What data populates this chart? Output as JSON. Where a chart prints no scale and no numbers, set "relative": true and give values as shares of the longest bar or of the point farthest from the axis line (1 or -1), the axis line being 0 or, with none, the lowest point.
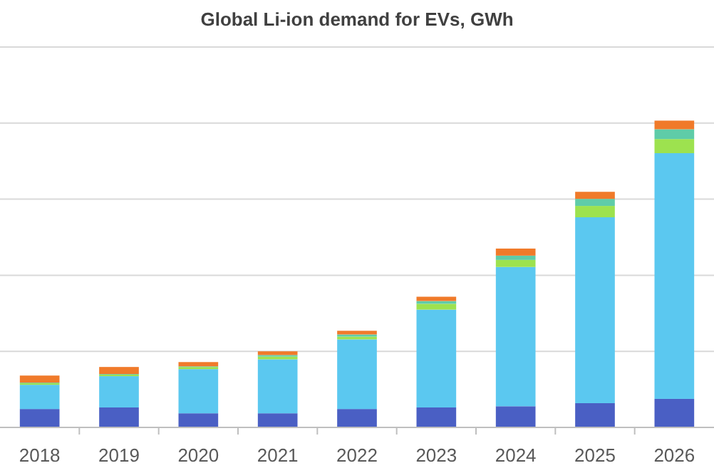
{
  "chart_data": {
    "type": "bar",
    "title": "Global Li-ion demand for EVs, GWh",
    "categories": [
      "2018",
      "2019",
      "2020",
      "2021",
      "2022",
      "2023",
      "2024",
      "2025",
      "2026"
    ],
    "stacked": true,
    "relative": true,
    "grid": "y",
    "series": [
      {
        "color": "#4a5fc4",
        "values": [
          0.06,
          0.065,
          0.046,
          0.046,
          0.06,
          0.065,
          0.069,
          0.079,
          0.093
        ]
      },
      {
        "color": "#5bc8f0",
        "values": [
          0.079,
          0.102,
          0.144,
          0.176,
          0.227,
          0.319,
          0.454,
          0.606,
          0.801
        ]
      },
      {
        "color": "#9de24f",
        "values": [
          0.005,
          0.005,
          0.007,
          0.009,
          0.009,
          0.019,
          0.023,
          0.037,
          0.046
        ]
      },
      {
        "color": "#5fcca8",
        "values": [
          0.002,
          0.002,
          0.002,
          0.005,
          0.007,
          0.009,
          0.014,
          0.023,
          0.032
        ]
      },
      {
        "color": "#f07a2a",
        "values": [
          0.023,
          0.023,
          0.014,
          0.012,
          0.012,
          0.014,
          0.023,
          0.023,
          0.028
        ]
      }
    ]
  }
}
